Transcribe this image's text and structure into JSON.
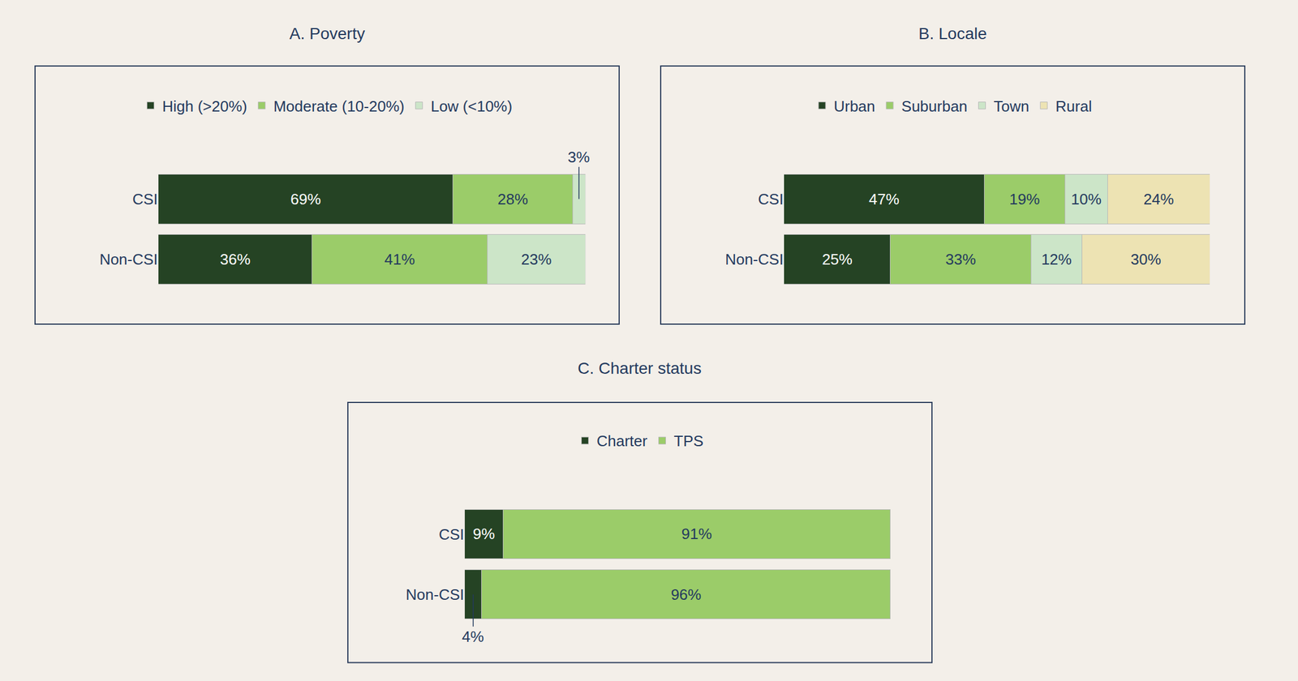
{
  "chart_data": [
    {
      "type": "bar",
      "title": "A. Poverty",
      "orientation": "horizontal",
      "stacked": true,
      "data_labels": true,
      "tick_labels": "y",
      "categories": [
        "CSI",
        "Non-CSI"
      ],
      "xlim": [
        0,
        100
      ],
      "series": [
        {
          "name": "High (>20%)",
          "color": "#254324",
          "values": [
            69,
            36
          ],
          "value_labels": [
            "69%",
            "36%"
          ]
        },
        {
          "name": "Moderate (10-20%)",
          "color": "#9bcc69",
          "values": [
            28,
            41
          ],
          "value_labels": [
            "28%",
            "41%"
          ]
        },
        {
          "name": "Low (<10%)",
          "color": "#cce5c8",
          "values": [
            3,
            23
          ],
          "value_labels": [
            "3%",
            "23%"
          ]
        }
      ]
    },
    {
      "type": "bar",
      "title": "B. Locale",
      "orientation": "horizontal",
      "stacked": true,
      "data_labels": true,
      "tick_labels": "y",
      "categories": [
        "CSI",
        "Non-CSI"
      ],
      "xlim": [
        0,
        100
      ],
      "series": [
        {
          "name": "Urban",
          "color": "#254324",
          "values": [
            47,
            25
          ],
          "value_labels": [
            "47%",
            "25%"
          ]
        },
        {
          "name": "Suburban",
          "color": "#9bcc69",
          "values": [
            19,
            33
          ],
          "value_labels": [
            "19%",
            "33%"
          ]
        },
        {
          "name": "Town",
          "color": "#cce5c8",
          "values": [
            10,
            12
          ],
          "value_labels": [
            "10%",
            "12%"
          ]
        },
        {
          "name": "Rural",
          "color": "#ede3b3",
          "values": [
            24,
            30
          ],
          "value_labels": [
            "24%",
            "30%"
          ]
        }
      ]
    },
    {
      "type": "bar",
      "title": "C. Charter status",
      "orientation": "horizontal",
      "stacked": true,
      "data_labels": true,
      "tick_labels": "y",
      "categories": [
        "CSI",
        "Non-CSI"
      ],
      "xlim": [
        0,
        100
      ],
      "series": [
        {
          "name": "Charter",
          "color": "#254324",
          "values": [
            9,
            4
          ],
          "value_labels": [
            "9%",
            "4%"
          ]
        },
        {
          "name": "TPS",
          "color": "#9bcc69",
          "values": [
            91,
            96
          ],
          "value_labels": [
            "91%",
            "96%"
          ]
        }
      ]
    }
  ]
}
